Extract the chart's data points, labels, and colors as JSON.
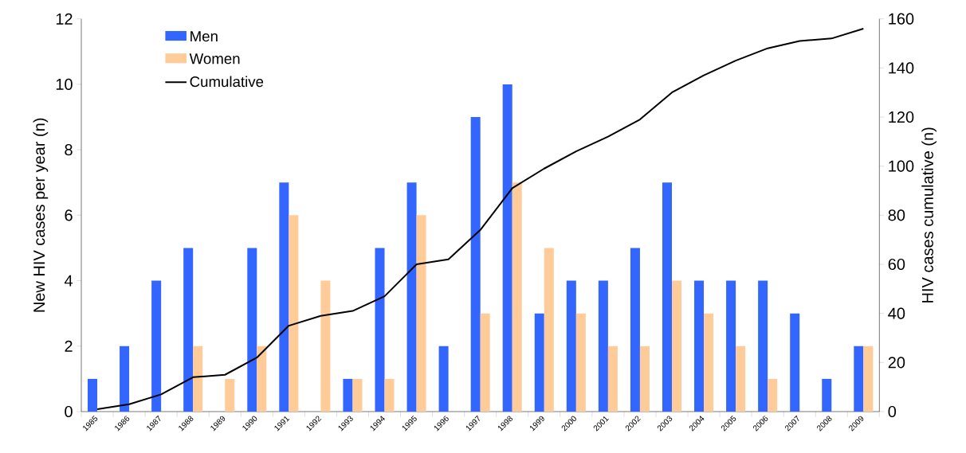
{
  "chart_data": {
    "type": "bar",
    "ylabel": "New HIV cases per year (n)",
    "y2label": "HIV cases cumulative (n)",
    "categories": [
      "1985",
      "1986",
      "1987",
      "1988",
      "1989",
      "1990",
      "1991",
      "1992",
      "1993",
      "1994",
      "1995",
      "1996",
      "1997",
      "1998",
      "1999",
      "2000",
      "2001",
      "2002",
      "2003",
      "2004",
      "2005",
      "2006",
      "2007",
      "2008",
      "2009"
    ],
    "series": [
      {
        "name": "Men",
        "color": "#3366ff",
        "values": [
          1,
          2,
          4,
          5,
          0,
          5,
          7,
          0,
          1,
          5,
          7,
          2,
          9,
          10,
          3,
          4,
          4,
          5,
          7,
          4,
          4,
          4,
          3,
          1,
          2
        ]
      },
      {
        "name": "Women",
        "color": "#ffcc99",
        "values": [
          0,
          0,
          0,
          2,
          1,
          2,
          6,
          4,
          1,
          1,
          6,
          0,
          3,
          7,
          5,
          3,
          2,
          2,
          4,
          3,
          2,
          1,
          0,
          0,
          2
        ]
      },
      {
        "name": "Cumulative",
        "type": "line",
        "axis": "y2",
        "color": "#000000",
        "values": [
          1,
          3,
          7,
          14,
          15,
          22,
          35,
          39,
          41,
          47,
          60,
          62,
          74,
          91,
          99,
          106,
          112,
          119,
          130,
          137,
          143,
          148,
          151,
          152,
          156
        ]
      }
    ],
    "ylim": [
      0,
      12
    ],
    "yticks": [
      0,
      2,
      4,
      6,
      8,
      10,
      12
    ],
    "y2lim": [
      0,
      160
    ],
    "y2ticks": [
      0,
      20,
      40,
      60,
      80,
      100,
      120,
      140,
      160
    ],
    "legend": "top left"
  }
}
